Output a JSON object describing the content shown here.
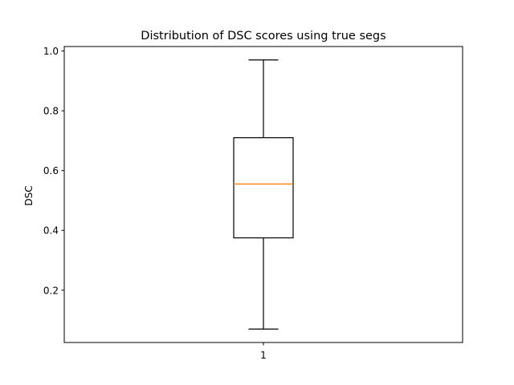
{
  "chart_data": {
    "type": "box",
    "title": "Distribution of DSC scores using true segs",
    "xlabel": "",
    "ylabel": "DSC",
    "categories": [
      "1"
    ],
    "boxes": [
      {
        "label": "1",
        "whisker_low": 0.07,
        "q1": 0.375,
        "median": 0.555,
        "q3": 0.71,
        "whisker_high": 0.97
      }
    ],
    "ylim": [
      0.025,
      1.015
    ],
    "yticks": [
      0.2,
      0.4,
      0.6,
      0.8,
      1.0
    ],
    "ytick_labels": [
      "0.2",
      "0.4",
      "0.6",
      "0.8",
      "1.0"
    ],
    "grid": false,
    "colors": {
      "box": "#000000",
      "median": "#ff7f0e",
      "whisker": "#000000"
    }
  }
}
